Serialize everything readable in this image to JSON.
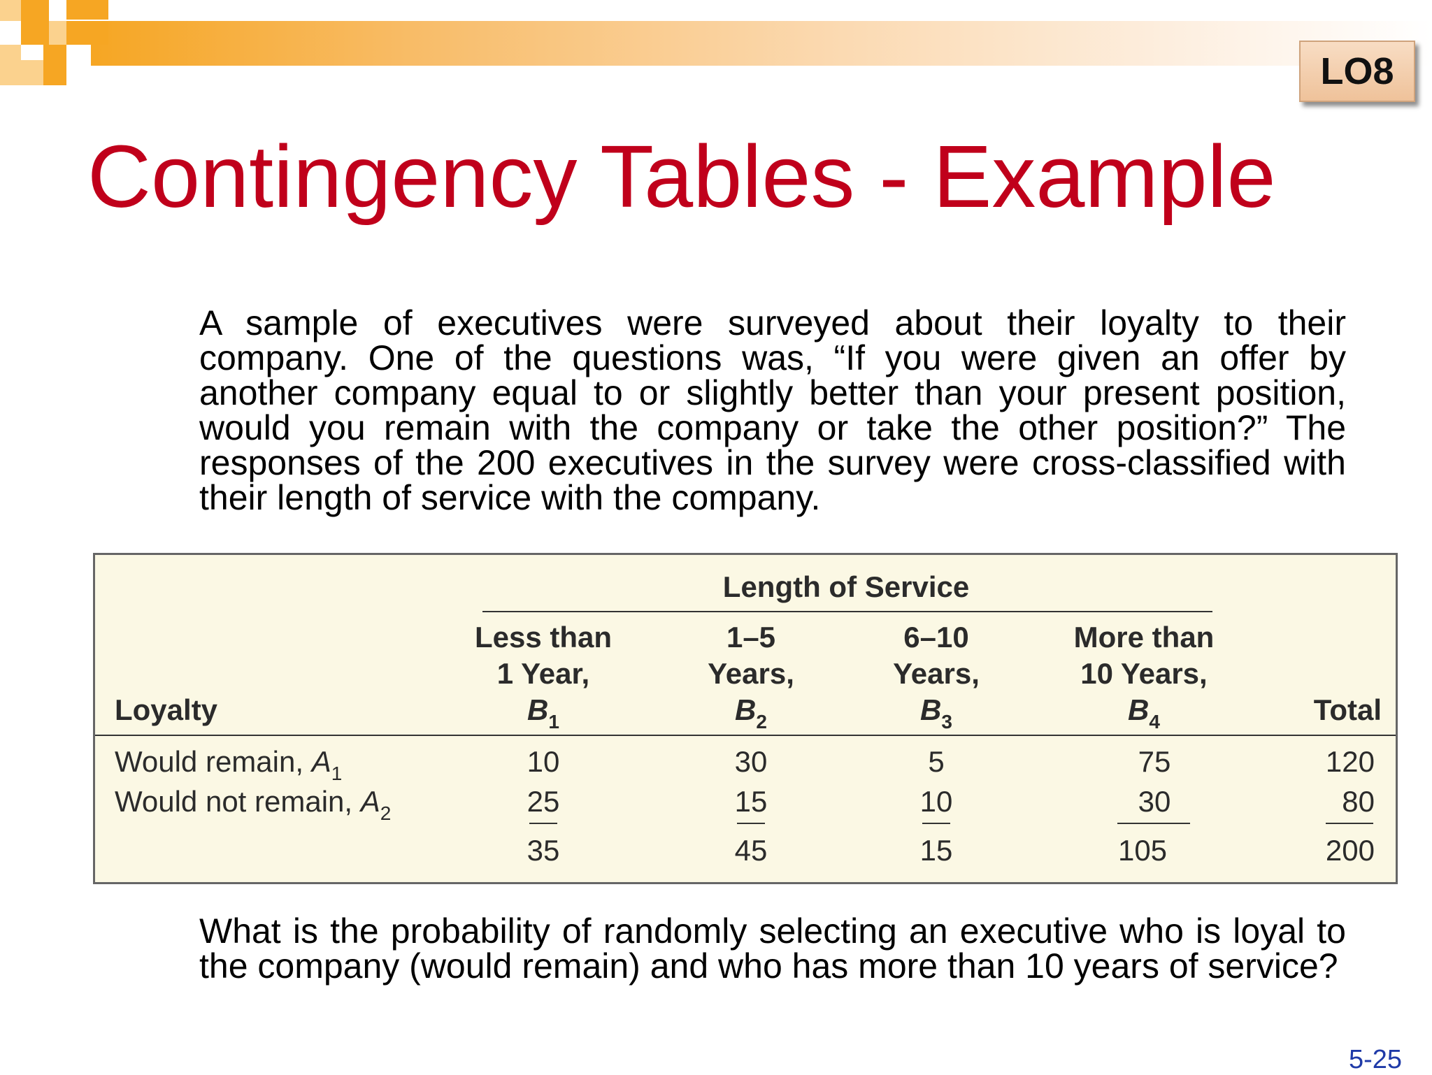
{
  "badge": "LO8",
  "title": "Contingency Tables - Example",
  "intro": "A sample of executives were surveyed about their loyalty to their company. One of the questions was, “If you were given an offer by another company equal to or slightly better than your present position, would you remain with the company or take the other position?” The responses of the 200 executives in the survey were cross-classified with their length of service with the company.",
  "table": {
    "group_header": "Length of Service",
    "row_header": "Loyalty",
    "columns": [
      {
        "line1": "Less than",
        "line2": "1 Year,",
        "symbol": "B",
        "sub": "1"
      },
      {
        "line1": "1–5",
        "line2": "Years,",
        "symbol": "B",
        "sub": "2"
      },
      {
        "line1": "6–10",
        "line2": "Years,",
        "symbol": "B",
        "sub": "3"
      },
      {
        "line1": "More than",
        "line2": "10 Years,",
        "symbol": "B",
        "sub": "4"
      }
    ],
    "total_header": "Total",
    "rows": [
      {
        "label": "Would remain, ",
        "symbol": "A",
        "sub": "1",
        "values": [
          "10",
          "30",
          "5",
          "75"
        ],
        "total": "120"
      },
      {
        "label": "Would not remain, ",
        "symbol": "A",
        "sub": "2",
        "values": [
          "25",
          "15",
          "10",
          "30"
        ],
        "total": "80"
      }
    ],
    "column_totals": [
      "35",
      "45",
      "15",
      "105"
    ],
    "grand_total": "200"
  },
  "question": "What is the probability of randomly selecting an executive who is loyal to the company (would remain) and who has more than 10 years of service?",
  "page_number": "5-25"
}
